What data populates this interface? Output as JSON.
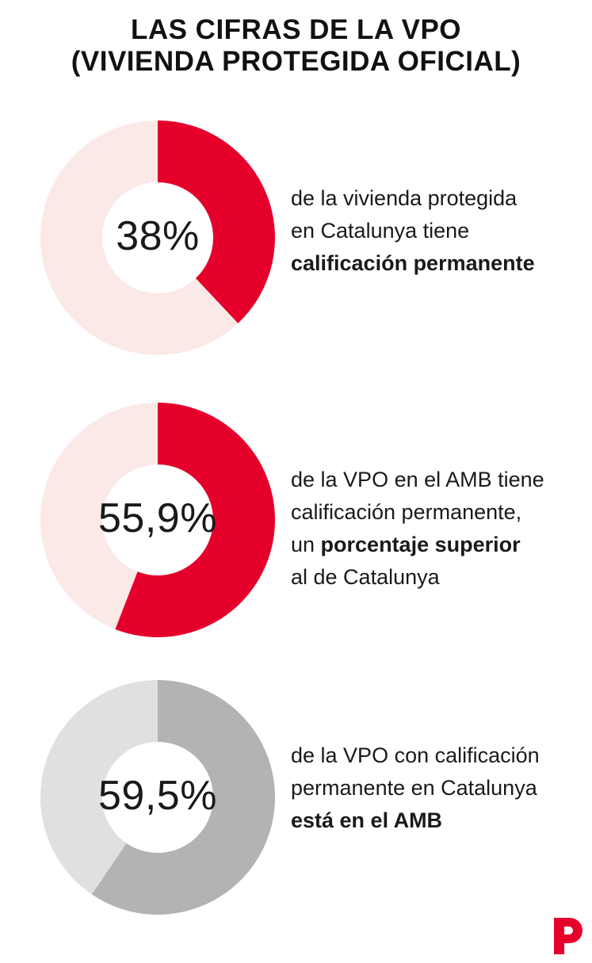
{
  "title": {
    "line1": "LAS CIFRAS DE LA VPO",
    "line2": "(VIVIENDA PROTEGIDA OFICIAL)"
  },
  "colors": {
    "red": "#e4002b",
    "pale_red": "#fbe9e7",
    "gray_dark": "#b3b3b3",
    "gray_light": "#e0e0e0"
  },
  "chart_data": [
    {
      "type": "pie",
      "value_percent": 38,
      "label": "38%",
      "text_lines": [
        {
          "plain": "de la vivienda protegida",
          "bold": ""
        },
        {
          "plain": "en Catalunya tiene",
          "bold": ""
        },
        {
          "plain": "",
          "bold": "calificación permanente"
        }
      ]
    },
    {
      "type": "pie",
      "value_percent": 55.9,
      "label": "55,9%",
      "text_lines": [
        {
          "plain": "de la VPO en el AMB tiene",
          "bold": ""
        },
        {
          "plain": "calificación permanente,",
          "bold": ""
        },
        {
          "plain": "un ",
          "bold": "porcentaje superior"
        },
        {
          "plain": "al de Catalunya",
          "bold": ""
        }
      ]
    },
    {
      "type": "pie",
      "value_percent": 59.5,
      "label": "59,5%",
      "text_lines": [
        {
          "plain": "de la VPO con calificación",
          "bold": ""
        },
        {
          "plain": "permanente en Catalunya",
          "bold": ""
        },
        {
          "plain": "",
          "bold": "está en el AMB"
        }
      ]
    }
  ],
  "logo": {
    "icon": "publico-p-logo"
  }
}
